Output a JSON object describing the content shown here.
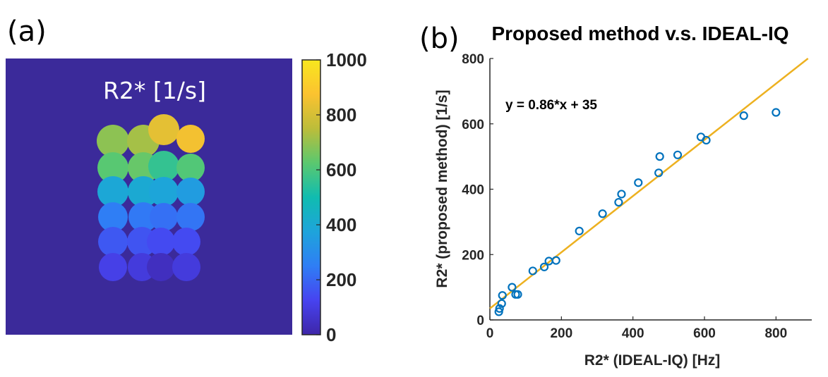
{
  "panel_a": {
    "label": "(a)",
    "map_title": "R2* [1/s]",
    "background_color": "#3b2a9a",
    "colormap": [
      "#3e26a8",
      "#4743f0",
      "#2f7ef5",
      "#1ea4db",
      "#10bcb0",
      "#5bc86f",
      "#bcbd3a",
      "#fbc230",
      "#f8e71e"
    ],
    "vial_rows": [
      [
        690,
        720,
        830,
        860
      ],
      [
        620,
        640,
        560,
        610
      ],
      [
        390,
        400,
        380,
        350
      ],
      [
        250,
        240,
        220,
        230
      ],
      [
        170,
        160,
        140,
        140
      ],
      [
        110,
        90,
        40,
        90
      ]
    ],
    "colorbar": {
      "min": 0,
      "max": 1000,
      "ticks": [
        "1000",
        "800",
        "600",
        "400",
        "200",
        "0"
      ]
    }
  },
  "panel_b": {
    "label": "(b)",
    "chart_data": {
      "type": "scatter",
      "title": "Proposed method  v.s. IDEAL-IQ",
      "xlabel": "R2* (IDEAL-IQ) [Hz]",
      "ylabel": "R2* (proposed method) [1/s]",
      "xlim": [
        0,
        900
      ],
      "ylim": [
        0,
        800
      ],
      "xticks": [
        0,
        200,
        400,
        600,
        800
      ],
      "yticks": [
        0,
        200,
        400,
        600,
        800
      ],
      "grid": false,
      "points": {
        "color": "#0072bd",
        "x": [
          25,
          27,
          33,
          35,
          62,
          72,
          78,
          120,
          152,
          165,
          185,
          250,
          315,
          360,
          368,
          415,
          472,
          475,
          525,
          590,
          605,
          710,
          800
        ],
        "y": [
          25,
          35,
          50,
          75,
          100,
          78,
          78,
          150,
          162,
          180,
          182,
          272,
          325,
          360,
          385,
          420,
          450,
          500,
          505,
          560,
          550,
          625,
          635
        ]
      },
      "fit_line": {
        "color": "#edb120",
        "slope": 0.86,
        "intercept": 35,
        "equation": "y = 0.86*x + 35"
      }
    }
  }
}
